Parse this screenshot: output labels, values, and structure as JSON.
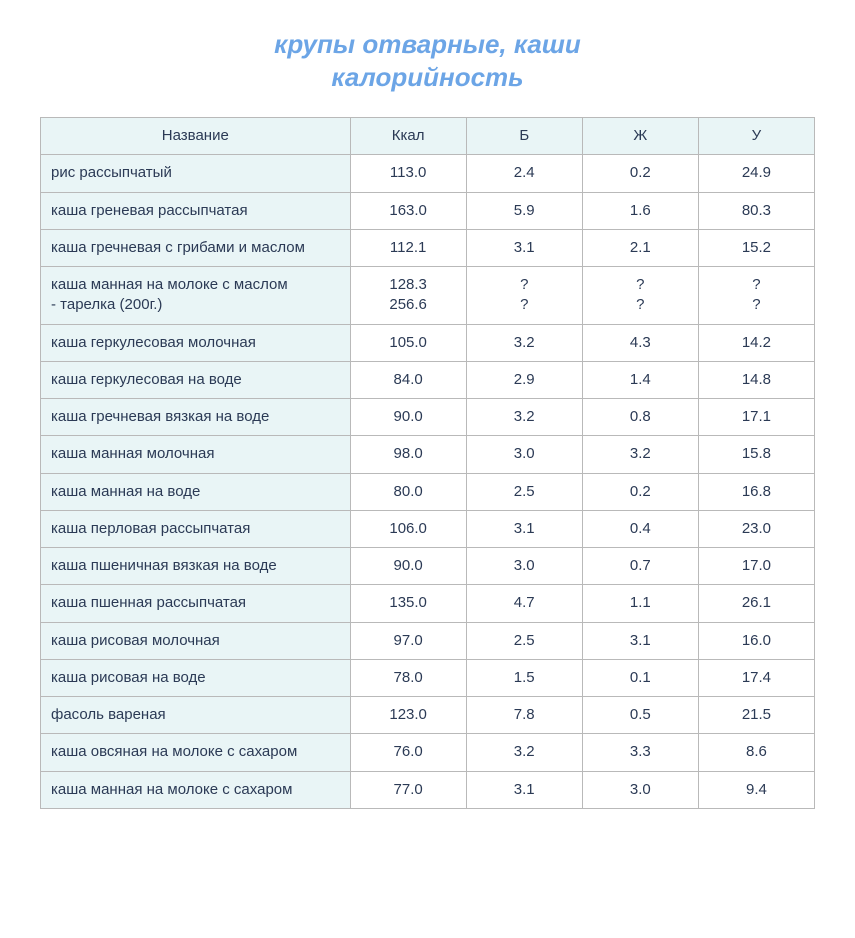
{
  "title_line1": "крупы отварные, каши",
  "title_line2": "калорийность",
  "table": {
    "columns": [
      "Название",
      "Ккал",
      "Б",
      "Ж",
      "У"
    ],
    "col_widths_pct": [
      40,
      15,
      15,
      15,
      15
    ],
    "header_bg": "#e9f5f6",
    "name_col_bg": "#e9f5f6",
    "num_col_bg": "#ffffff",
    "border_color": "#b9b9b9",
    "text_color": "#2b3a55",
    "title_color": "#6ca5e6",
    "font_family": "Verdana, Arial, sans-serif",
    "cell_fontsize": 15,
    "title_fontsize": 26,
    "rows": [
      {
        "name": "рис рассыпчатый",
        "kcal": "113.0",
        "b": "2.4",
        "zh": "0.2",
        "u": "24.9"
      },
      {
        "name": "каша греневая рассыпчатая",
        "kcal": "163.0",
        "b": "5.9",
        "zh": "1.6",
        "u": "80.3"
      },
      {
        "name": "каша гречневая с грибами и маслом",
        "kcal": "112.1",
        "b": "3.1",
        "zh": "2.1",
        "u": "15.2"
      },
      {
        "name": "каша манная на молоке с маслом\n- тарелка (200г.)",
        "kcal": "128.3\n256.6",
        "b": "?\n?",
        "zh": "?\n?",
        "u": "?\n?"
      },
      {
        "name": "каша геркулесовая молочная",
        "kcal": "105.0",
        "b": "3.2",
        "zh": "4.3",
        "u": "14.2"
      },
      {
        "name": "каша геркулесовая на воде",
        "kcal": "84.0",
        "b": "2.9",
        "zh": "1.4",
        "u": "14.8"
      },
      {
        "name": "каша гречневая вязкая на воде",
        "kcal": "90.0",
        "b": "3.2",
        "zh": "0.8",
        "u": "17.1"
      },
      {
        "name": "каша манная молочная",
        "kcal": "98.0",
        "b": "3.0",
        "zh": "3.2",
        "u": "15.8"
      },
      {
        "name": "каша манная на воде",
        "kcal": "80.0",
        "b": "2.5",
        "zh": "0.2",
        "u": "16.8"
      },
      {
        "name": "каша перловая рассыпчатая",
        "kcal": "106.0",
        "b": "3.1",
        "zh": "0.4",
        "u": "23.0"
      },
      {
        "name": "каша пшеничная вязкая на воде",
        "kcal": "90.0",
        "b": "3.0",
        "zh": "0.7",
        "u": "17.0"
      },
      {
        "name": "каша пшенная рассыпчатая",
        "kcal": "135.0",
        "b": "4.7",
        "zh": "1.1",
        "u": "26.1"
      },
      {
        "name": "каша рисовая молочная",
        "kcal": "97.0",
        "b": "2.5",
        "zh": "3.1",
        "u": "16.0"
      },
      {
        "name": "каша рисовая на воде",
        "kcal": "78.0",
        "b": "1.5",
        "zh": "0.1",
        "u": "17.4"
      },
      {
        "name": "фасоль вареная",
        "kcal": "123.0",
        "b": "7.8",
        "zh": "0.5",
        "u": "21.5"
      },
      {
        "name": "каша овсяная на молоке с сахаром",
        "kcal": "76.0",
        "b": "3.2",
        "zh": "3.3",
        "u": "8.6"
      },
      {
        "name": "каша манная на молоке с сахаром",
        "kcal": "77.0",
        "b": "3.1",
        "zh": "3.0",
        "u": "9.4"
      }
    ]
  }
}
